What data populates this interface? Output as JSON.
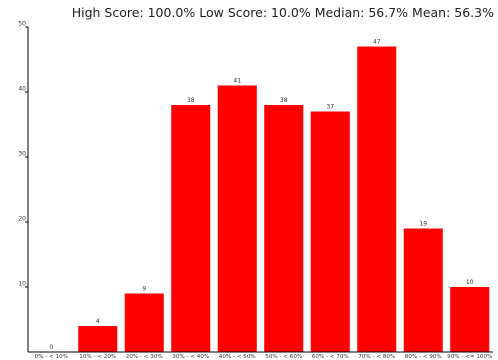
{
  "summary": {
    "text": "High Score: 100.0%  Low Score: 10.0%  Median: 56.7%  Mean: 56.3%"
  },
  "chart_data": {
    "type": "bar",
    "categories": [
      "0% - < 10%",
      "10% - < 20%",
      "20% - < 30%",
      "30% - < 40%",
      "40% - < 50%",
      "50% - < 60%",
      "60% - < 70%",
      "70% - < 80%",
      "80% - < 90%",
      "90% - <= 100%"
    ],
    "values": [
      0,
      4,
      9,
      38,
      41,
      38,
      37,
      47,
      19,
      10
    ],
    "yticks": [
      10,
      20,
      30,
      40,
      50
    ],
    "ylim": [
      0,
      50
    ],
    "bar_color": "#ff0000",
    "axis_color": "#000000",
    "grid": false,
    "data_labels": true
  }
}
